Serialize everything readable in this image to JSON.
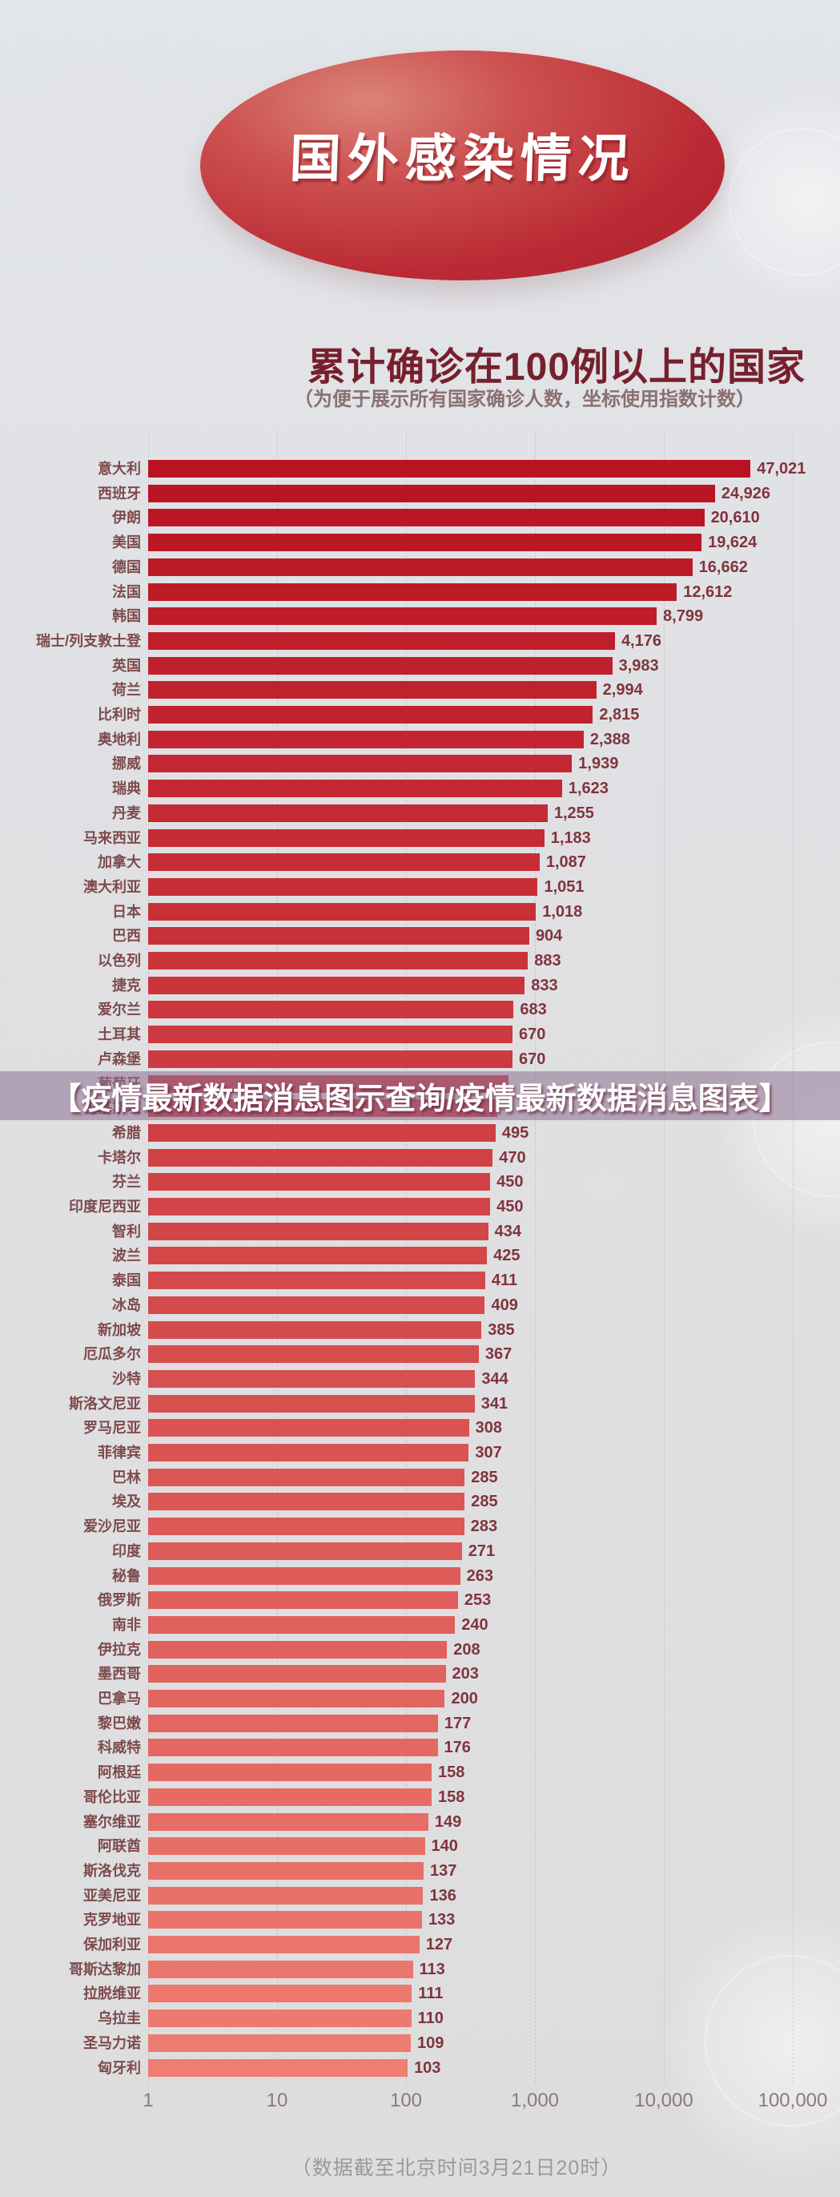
{
  "page": {
    "banner_title": "国外感染情况",
    "watermark_text": "【疫情最新数据消息图示查询/疫情最新数据消息图表】",
    "footer_note": "（数据截至北京时间3月21日20时）",
    "colors": {
      "background": "#e0e0e3",
      "banner_red": "#b82632",
      "bar_dark": "#b91422",
      "bar_light": "#ee7d72",
      "title_maroon": "#77202d",
      "label_text": "#7d4a4c",
      "value_text": "#80343d",
      "watermark_band": "rgba(141,112,146,0.55)",
      "axis_text": "#8b7a7a",
      "footer_text": "#9a999b"
    }
  },
  "chart_data": {
    "type": "bar",
    "orientation": "horizontal",
    "title": "累计确诊在100例以上的国家",
    "subtitle_note": "（为便于展示所有国家确诊人数，坐标使用指数计数）",
    "x_scale": "log10",
    "x_range": [
      1,
      100000
    ],
    "x_ticks": [
      "1",
      "10",
      "100",
      "1,000",
      "10,000",
      "100,000"
    ],
    "grid": "vertical-dashed",
    "legend": "none",
    "rows": [
      {
        "label": "意大利",
        "value": 47021,
        "display": "47,021"
      },
      {
        "label": "西班牙",
        "value": 24926,
        "display": "24,926"
      },
      {
        "label": "伊朗",
        "value": 20610,
        "display": "20,610"
      },
      {
        "label": "美国",
        "value": 19624,
        "display": "19,624"
      },
      {
        "label": "德国",
        "value": 16662,
        "display": "16,662"
      },
      {
        "label": "法国",
        "value": 12612,
        "display": "12,612"
      },
      {
        "label": "韩国",
        "value": 8799,
        "display": "8,799"
      },
      {
        "label": "瑞士/列支敦士登",
        "value": 4176,
        "display": "4,176"
      },
      {
        "label": "英国",
        "value": 3983,
        "display": "3,983"
      },
      {
        "label": "荷兰",
        "value": 2994,
        "display": "2,994"
      },
      {
        "label": "比利时",
        "value": 2815,
        "display": "2,815"
      },
      {
        "label": "奥地利",
        "value": 2388,
        "display": "2,388"
      },
      {
        "label": "挪威",
        "value": 1939,
        "display": "1,939"
      },
      {
        "label": "瑞典",
        "value": 1623,
        "display": "1,623"
      },
      {
        "label": "丹麦",
        "value": 1255,
        "display": "1,255"
      },
      {
        "label": "马来西亚",
        "value": 1183,
        "display": "1,183"
      },
      {
        "label": "加拿大",
        "value": 1087,
        "display": "1,087"
      },
      {
        "label": "澳大利亚",
        "value": 1051,
        "display": "1,051"
      },
      {
        "label": "日本",
        "value": 1018,
        "display": "1,018"
      },
      {
        "label": "巴西",
        "value": 904,
        "display": "904"
      },
      {
        "label": "以色列",
        "value": 883,
        "display": "883"
      },
      {
        "label": "捷克",
        "value": 833,
        "display": "833"
      },
      {
        "label": "爱尔兰",
        "value": 683,
        "display": "683"
      },
      {
        "label": "土耳其",
        "value": 670,
        "display": "670"
      },
      {
        "label": "卢森堡",
        "value": 670,
        "display": "670"
      },
      {
        "label": "葡萄牙",
        "value": null,
        "display": "",
        "value_visible": false,
        "bar_estimate": 620
      },
      {
        "label": "巴基斯坦",
        "value": null,
        "display": "",
        "value_visible": false,
        "bar_estimate": 510
      },
      {
        "label": "希腊",
        "value": 495,
        "display": "495"
      },
      {
        "label": "卡塔尔",
        "value": 470,
        "display": "470"
      },
      {
        "label": "芬兰",
        "value": 450,
        "display": "450"
      },
      {
        "label": "印度尼西亚",
        "value": 450,
        "display": "450"
      },
      {
        "label": "智利",
        "value": 434,
        "display": "434"
      },
      {
        "label": "波兰",
        "value": 425,
        "display": "425"
      },
      {
        "label": "泰国",
        "value": 411,
        "display": "411"
      },
      {
        "label": "冰岛",
        "value": 409,
        "display": "409"
      },
      {
        "label": "新加坡",
        "value": 385,
        "display": "385"
      },
      {
        "label": "厄瓜多尔",
        "value": 367,
        "display": "367"
      },
      {
        "label": "沙特",
        "value": 344,
        "display": "344"
      },
      {
        "label": "斯洛文尼亚",
        "value": 341,
        "display": "341"
      },
      {
        "label": "罗马尼亚",
        "value": 308,
        "display": "308"
      },
      {
        "label": "菲律宾",
        "value": 307,
        "display": "307"
      },
      {
        "label": "巴林",
        "value": 285,
        "display": "285"
      },
      {
        "label": "埃及",
        "value": 285,
        "display": "285"
      },
      {
        "label": "爱沙尼亚",
        "value": 283,
        "display": "283"
      },
      {
        "label": "印度",
        "value": 271,
        "display": "271"
      },
      {
        "label": "秘鲁",
        "value": 263,
        "display": "263"
      },
      {
        "label": "俄罗斯",
        "value": 253,
        "display": "253"
      },
      {
        "label": "南非",
        "value": 240,
        "display": "240"
      },
      {
        "label": "伊拉克",
        "value": 208,
        "display": "208"
      },
      {
        "label": "墨西哥",
        "value": 203,
        "display": "203"
      },
      {
        "label": "巴拿马",
        "value": 200,
        "display": "200"
      },
      {
        "label": "黎巴嫩",
        "value": 177,
        "display": "177"
      },
      {
        "label": "科威特",
        "value": 176,
        "display": "176"
      },
      {
        "label": "阿根廷",
        "value": 158,
        "display": "158"
      },
      {
        "label": "哥伦比亚",
        "value": 158,
        "display": "158"
      },
      {
        "label": "塞尔维亚",
        "value": 149,
        "display": "149"
      },
      {
        "label": "阿联酋",
        "value": 140,
        "display": "140"
      },
      {
        "label": "斯洛伐克",
        "value": 137,
        "display": "137"
      },
      {
        "label": "亚美尼亚",
        "value": 136,
        "display": "136"
      },
      {
        "label": "克罗地亚",
        "value": 133,
        "display": "133"
      },
      {
        "label": "保加利亚",
        "value": 127,
        "display": "127"
      },
      {
        "label": "哥斯达黎加",
        "value": 113,
        "display": "113"
      },
      {
        "label": "拉脱维亚",
        "value": 111,
        "display": "111"
      },
      {
        "label": "乌拉圭",
        "value": 110,
        "display": "110"
      },
      {
        "label": "圣马力诺",
        "value": 109,
        "display": "109"
      },
      {
        "label": "匈牙利",
        "value": 103,
        "display": "103"
      }
    ]
  }
}
